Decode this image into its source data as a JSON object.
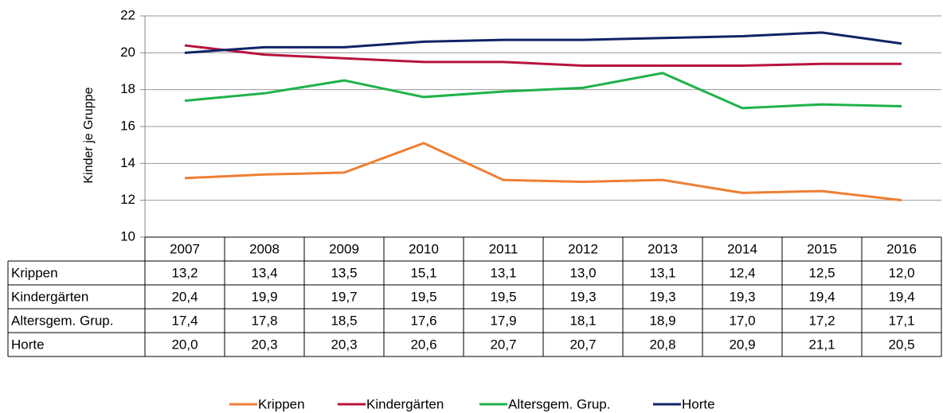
{
  "chart_data": {
    "type": "line",
    "y_label": "Kinder je Gruppe",
    "categories": [
      "2007",
      "2008",
      "2009",
      "2010",
      "2011",
      "2012",
      "2013",
      "2014",
      "2015",
      "2016"
    ],
    "series": [
      {
        "name": "Krippen",
        "color": "#ee7f33",
        "values": [
          13.2,
          13.4,
          13.5,
          15.1,
          13.1,
          13.0,
          13.1,
          12.4,
          12.5,
          12.0
        ],
        "value_labels": [
          "13,2",
          "13,4",
          "13,5",
          "15,1",
          "13,1",
          "13,0",
          "13,1",
          "12,4",
          "12,5",
          "12,0"
        ]
      },
      {
        "name": "Kindergärten",
        "color": "#b7133d",
        "values": [
          20.4,
          19.9,
          19.7,
          19.5,
          19.5,
          19.3,
          19.3,
          19.3,
          19.4,
          19.4
        ],
        "value_labels": [
          "20,4",
          "19,9",
          "19,7",
          "19,5",
          "19,5",
          "19,3",
          "19,3",
          "19,3",
          "19,4",
          "19,4"
        ]
      },
      {
        "name": "Altersgem. Grup.",
        "color": "#1fb24b",
        "values": [
          17.4,
          17.8,
          18.5,
          17.6,
          17.9,
          18.1,
          18.9,
          17.0,
          17.2,
          17.1
        ],
        "value_labels": [
          "17,4",
          "17,8",
          "18,5",
          "17,6",
          "17,9",
          "18,1",
          "18,9",
          "17,0",
          "17,2",
          "17,1"
        ]
      },
      {
        "name": "Horte",
        "color": "#0e2466",
        "values": [
          20.0,
          20.3,
          20.3,
          20.6,
          20.7,
          20.7,
          20.8,
          20.9,
          21.1,
          20.5
        ],
        "value_labels": [
          "20,0",
          "20,3",
          "20,3",
          "20,6",
          "20,7",
          "20,7",
          "20,8",
          "20,9",
          "21,1",
          "20,5"
        ]
      }
    ],
    "ylim": [
      10,
      22
    ],
    "yticks": [
      10,
      12,
      14,
      16,
      18,
      20,
      22
    ],
    "grid": true
  }
}
